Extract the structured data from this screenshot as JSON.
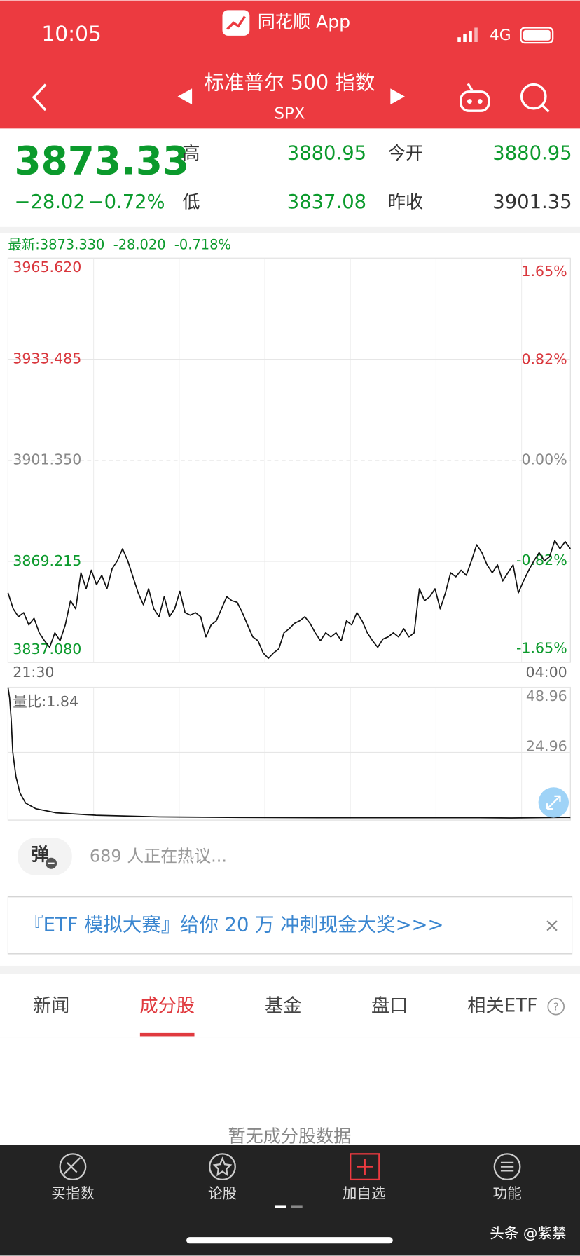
{
  "status_bar": {
    "time": "10:05",
    "app_name": "同花顺 App",
    "network": "4G"
  },
  "header": {
    "title": "标准普尔 500 指数",
    "code": "SPX"
  },
  "quote": {
    "price": "3873.33",
    "change": "−28.02",
    "change_pct": "−0.72%",
    "fields": [
      {
        "label": "高",
        "value": "3880.95"
      },
      {
        "label": "低",
        "value": "3837.08"
      },
      {
        "label": "今开",
        "value": "3880.95"
      },
      {
        "label": "昨收",
        "value": "3901.35"
      }
    ]
  },
  "chart_data": [
    {
      "type": "line",
      "legend": "最新:3873.330  -28.020  -0.718%",
      "categories": [
        "21:30",
        null,
        null,
        null,
        null,
        null,
        null,
        null,
        null,
        null,
        null,
        null,
        null,
        null,
        null,
        null,
        null,
        null,
        null,
        null,
        null,
        null,
        null,
        null,
        null,
        null,
        null,
        null,
        null,
        null,
        null,
        null,
        null,
        null,
        null,
        null,
        null,
        null,
        null,
        null,
        null,
        null,
        null,
        null,
        null,
        null,
        null,
        null,
        null,
        null,
        null,
        null,
        null,
        null,
        null,
        null,
        null,
        null,
        null,
        null,
        null,
        null,
        null,
        null,
        null,
        null,
        null,
        null,
        null,
        null,
        null,
        null,
        null,
        null,
        null,
        null,
        null,
        null,
        null,
        null,
        null,
        null,
        null,
        null,
        null,
        null,
        null,
        null,
        null,
        null,
        null,
        null,
        null,
        null,
        null,
        null,
        null,
        null,
        null,
        null,
        null,
        null,
        null,
        null,
        null,
        null,
        null,
        null,
        "04:00"
      ],
      "series": [
        {
          "color": "#111111",
          "values": [
            3859.2,
            3854.1,
            3851.6,
            3852.9,
            3849.0,
            3851.1,
            3846.5,
            3844.0,
            3841.9,
            3846.5,
            3844.0,
            3849.0,
            3856.7,
            3854.1,
            3865.6,
            3860.5,
            3866.4,
            3861.8,
            3864.8,
            3860.5,
            3866.9,
            3869.4,
            3873.2,
            3869.4,
            3864.3,
            3859.2,
            3855.4,
            3860.5,
            3854.1,
            3851.6,
            3858.0,
            3851.6,
            3854.1,
            3859.7,
            3852.9,
            3852.1,
            3852.9,
            3851.6,
            3845.2,
            3849.0,
            3850.3,
            3854.1,
            3858.0,
            3856.7,
            3856.2,
            3852.9,
            3849.0,
            3845.2,
            3844.0,
            3840.1,
            3838.4,
            3840.1,
            3841.4,
            3846.5,
            3847.8,
            3849.5,
            3850.3,
            3851.6,
            3849.5,
            3846.5,
            3844.0,
            3846.5,
            3845.2,
            3846.5,
            3844.0,
            3850.3,
            3849.0,
            3852.9,
            3850.3,
            3846.5,
            3844.0,
            3841.9,
            3844.5,
            3845.2,
            3846.5,
            3845.2,
            3847.8,
            3845.2,
            3846.5,
            3860.5,
            3856.7,
            3858.0,
            3860.5,
            3854.1,
            3859.2,
            3865.6,
            3864.3,
            3866.4,
            3864.8,
            3869.4,
            3874.5,
            3872.0,
            3868.1,
            3865.6,
            3868.1,
            3863.0,
            3865.6,
            3868.1,
            3859.2,
            3863.0,
            3866.4,
            3869.4,
            3872.0,
            3869.4,
            3870.7,
            3875.8,
            3873.2,
            3875.5,
            3873.2
          ]
        }
      ],
      "ylim": [
        3837.08,
        3965.62
      ],
      "yticks": [
        {
          "value": 3837.08,
          "label": "3837.080"
        },
        {
          "value": 3869.215,
          "label": "3869.215"
        },
        {
          "value": 3901.35,
          "label": "3901.350"
        },
        {
          "value": 3933.485,
          "label": "3933.485"
        },
        {
          "value": 3965.62,
          "label": "3965.620"
        }
      ],
      "y2lim": [
        -1.65,
        1.65
      ],
      "y2ticks": [
        {
          "value": -1.65,
          "label": "-1.65%"
        },
        {
          "value": -0.82,
          "label": "-0.82%"
        },
        {
          "value": 0,
          "label": "0.00%"
        },
        {
          "value": 0.82,
          "label": "0.82%"
        },
        {
          "value": 1.65,
          "label": "1.65%"
        }
      ],
      "grid": true
    },
    {
      "type": "line",
      "legend": "量比:1.84",
      "x": [
        0,
        1.1,
        2.2,
        3.3,
        5.5,
        8.3,
        12.2,
        19.4,
        33.3,
        61,
        105,
        161,
        216,
        272,
        327,
        349,
        383,
        390
      ],
      "xlim": [
        0,
        390
      ],
      "series": [
        {
          "color": "#111111",
          "values": [
            48.9,
            45,
            37,
            25,
            16,
            10,
            6.3,
            4.2,
            2.7,
            1.8,
            1.2,
            1.0,
            0.9,
            0.9,
            0.9,
            0.8,
            1.0,
            1.0
          ]
        }
      ],
      "ylim": [
        0,
        48.96
      ],
      "yticks": [
        24.96,
        48.96
      ],
      "grid": true
    }
  ],
  "danmu": {
    "badge": "弹",
    "text": "689 人正在热议..."
  },
  "banner": {
    "text": "『ETF 模拟大赛』给你 20 万 冲刺现金大奖>>>"
  },
  "tabs": {
    "items": [
      "新闻",
      "成分股",
      "基金",
      "盘口",
      "相关ETF"
    ],
    "active": 1
  },
  "empty_text": "暂无成分股数据",
  "bottom_nav": [
    "买指数",
    "论股",
    "加自选",
    "功能"
  ],
  "watermark": "头条 @紫禁"
}
